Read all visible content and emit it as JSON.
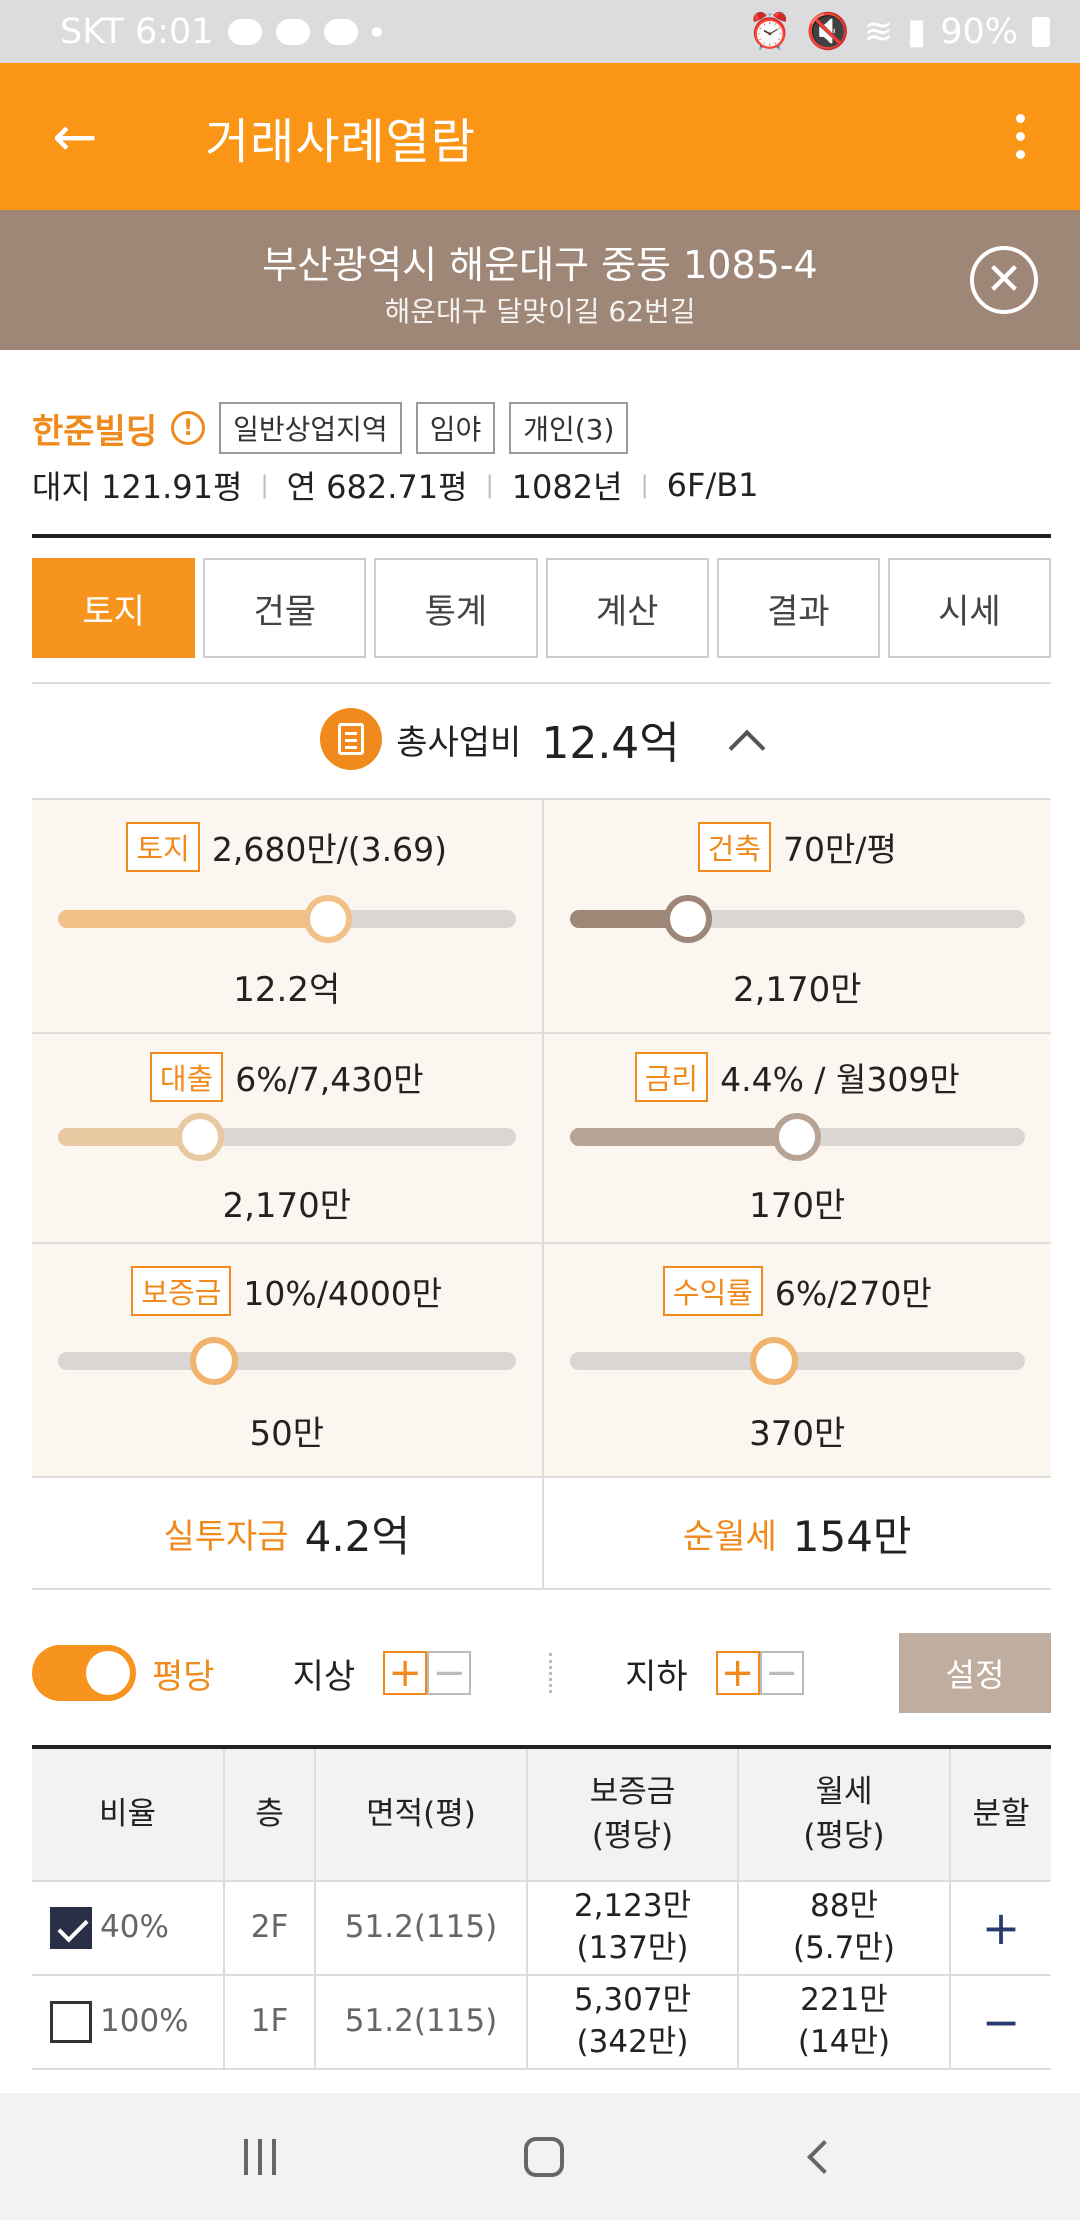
{
  "status_bar": {
    "carrier_time": "SKT 6:01",
    "battery": "90%"
  },
  "app_bar": {
    "title": "거래사례열람"
  },
  "address": {
    "main": "부산광역시 해운대구 중동 1085-4",
    "sub": "해운대구 달맞이길 62번길"
  },
  "building": {
    "name": "한준빌딩",
    "tags": [
      "일반상업지역",
      "임야",
      "개인(3)"
    ],
    "stats": [
      "대지 121.91평",
      "연 682.71평",
      "1082년",
      "6F/B1"
    ]
  },
  "tabs": [
    "토지",
    "건물",
    "통계",
    "계산",
    "결과",
    "시세"
  ],
  "total": {
    "label": "총사업비",
    "value": "12.4억"
  },
  "sliders": [
    {
      "badge": "토지",
      "head": "2,680만/(3.69)",
      "value": "12.2억",
      "level": 0.59,
      "color": "#f2c18a"
    },
    {
      "badge": "건축",
      "head": "70만/평",
      "value": "2,170만",
      "level": 0.26,
      "color": "#9e8777"
    },
    {
      "badge": "대출",
      "head": "6%/7,430만",
      "value": "2,170만",
      "level": 0.31,
      "color": "#e8c9a2"
    },
    {
      "badge": "금리",
      "head": "4.4% / 월309만",
      "value": "170만",
      "level": 0.5,
      "color": "#b8a495"
    },
    {
      "badge": "보증금",
      "head": "10%/4000만",
      "value": "50만",
      "level": 0.34,
      "color": "#d9d6d3"
    },
    {
      "badge": "수익률",
      "head": "6%/270만",
      "value": "370만",
      "level": 0.45,
      "color": "#d9d6d3"
    }
  ],
  "summary": [
    {
      "label": "실투자금",
      "value": "4.2억"
    },
    {
      "label": "순월세",
      "value": "154만"
    }
  ],
  "controls": {
    "toggle_label": "평당",
    "above": "지상",
    "below": "지하",
    "plus": "+",
    "minus": "−",
    "setting": "설정"
  },
  "table": {
    "headers": [
      "비율",
      "층",
      "면적(평)",
      "보증금\n(평당)",
      "월세\n(평당)",
      "분할"
    ],
    "rows": [
      {
        "checked": true,
        "rate": "40%",
        "floor": "2F",
        "area": "51.2(115)",
        "deposit": "2,123만",
        "deposit_sub": "(137만)",
        "rent": "88만",
        "rent_sub": "(5.7만)",
        "split": "+"
      },
      {
        "checked": false,
        "rate": "100%",
        "floor": "1F",
        "area": "51.2(115)",
        "deposit": "5,307만",
        "deposit_sub": "(342만)",
        "rent": "221만",
        "rent_sub": "(14만)",
        "split": "−"
      }
    ]
  }
}
